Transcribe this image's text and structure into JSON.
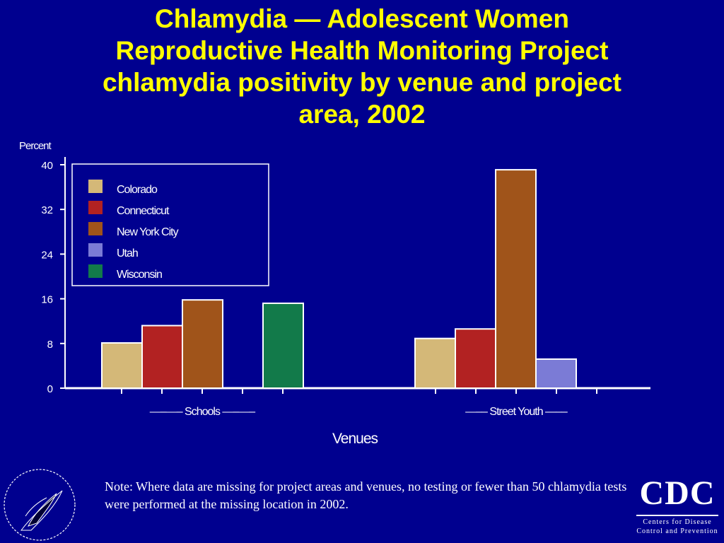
{
  "title_lines": [
    "Chlamydia — Adolescent Women",
    "Reproductive Health Monitoring Project",
    "chlamydia positivity by venue and project",
    "area, 2002"
  ],
  "note": "Note: Where data are missing for project areas and venues, no testing or fewer than 50 chlamydia tests were performed at the missing location in 2002.",
  "cdc_logo": {
    "text": "CDC",
    "tagline_1": "Centers for Disease",
    "tagline_2": "Control and Prevention"
  },
  "hhs_logo": {
    "icon": "hhs-eagle-seal-icon"
  },
  "colors": {
    "background": "#00008f",
    "title": "#ffff00",
    "axis": "#ffffff"
  },
  "chart_data": {
    "type": "bar",
    "title": "",
    "ylabel": "Percent",
    "xlabel": "Venues",
    "ylim": [
      0,
      40
    ],
    "yticks": [
      0,
      8,
      16,
      24,
      32,
      40
    ],
    "categories": [
      "—–—– Schools —–—–",
      "—–– Street Youth —––"
    ],
    "legend_position": "top-left",
    "series": [
      {
        "name": "Colorado",
        "color": "#d4b878",
        "values": [
          8.1,
          8.9
        ]
      },
      {
        "name": "Connecticut",
        "color": "#b22222",
        "values": [
          11.2,
          10.6
        ]
      },
      {
        "name": "New York City",
        "color": "#a0541a",
        "values": [
          15.8,
          39.1
        ]
      },
      {
        "name": "Utah",
        "color": "#7b7bd6",
        "values": [
          null,
          5.2
        ]
      },
      {
        "name": "Wisconsin",
        "color": "#127a4a",
        "values": [
          15.2,
          null
        ]
      }
    ]
  }
}
